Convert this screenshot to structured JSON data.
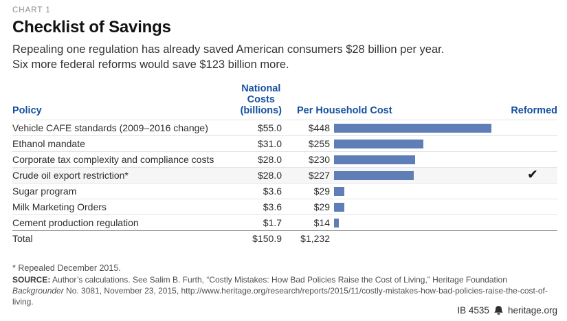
{
  "theme": {
    "accent_blue": "#14509e",
    "bar_color": "#5f7db7",
    "highlight_row": "#f6f6f6"
  },
  "header": {
    "eyebrow": "CHART 1",
    "title": "Checklist of Savings",
    "subtitle_line1": "Repealing one regulation has already saved American consumers $28 billion per year.",
    "subtitle_line2": "Six more federal reforms would save $123 billion more."
  },
  "table": {
    "headers": {
      "policy": "Policy",
      "national_lines": [
        "National",
        "Costs",
        "(billions)"
      ],
      "household": "Per Household Cost",
      "reformed": "Reformed"
    },
    "reformed_glyph": "✔",
    "rows": [
      {
        "policy": "Vehicle CAFE standards (2009–2016 change)",
        "national": "$55.0",
        "household": "$448",
        "household_value": 448,
        "reformed": false,
        "highlighted": false
      },
      {
        "policy": "Ethanol mandate",
        "national": "$31.0",
        "household": "$255",
        "household_value": 255,
        "reformed": false,
        "highlighted": false
      },
      {
        "policy": "Corporate tax complexity and compliance costs",
        "national": "$28.0",
        "household": "$230",
        "household_value": 230,
        "reformed": false,
        "highlighted": false
      },
      {
        "policy": "Crude oil export restriction*",
        "national": "$28.0",
        "household": "$227",
        "household_value": 227,
        "reformed": true,
        "highlighted": true
      },
      {
        "policy": "Sugar program",
        "national": "$3.6",
        "household": "$29",
        "household_value": 29,
        "reformed": false,
        "highlighted": false
      },
      {
        "policy": "Milk Marketing Orders",
        "national": "$3.6",
        "household": "$29",
        "household_value": 29,
        "reformed": false,
        "highlighted": false
      },
      {
        "policy": "Cement production regulation",
        "national": "$1.7",
        "household": "$14",
        "household_value": 14,
        "reformed": false,
        "highlighted": false
      }
    ],
    "total": {
      "label": "Total",
      "national": "$150.9",
      "household": "$1,232"
    }
  },
  "footnotes": {
    "asterisk": "* Repealed December 2015.",
    "source_label": "SOURCE:",
    "source_before_italic": " Author’s calculations. See Salim B. Furth, “Costly Mistakes: How Bad Policies Raise the Cost of Living,” Heritage Foundation ",
    "source_italic": "Backgrounder",
    "source_after_italic": " No. 3081, November 23, 2015, http://www.heritage.org/research/reports/2015/11/costly-mistakes-how-bad-policies-raise-the-cost-of-living."
  },
  "footer": {
    "report_id": "IB 4535",
    "site": "heritage.org"
  },
  "chart_data": {
    "type": "bar",
    "orientation": "horizontal",
    "title": "Checklist of Savings",
    "subtitle": "Repealing one regulation has already saved American consumers $28 billion per year. Six more federal reforms would save $123 billion more.",
    "categories": [
      "Vehicle CAFE standards (2009–2016 change)",
      "Ethanol mandate",
      "Corporate tax complexity and compliance costs",
      "Crude oil export restriction*",
      "Sugar program",
      "Milk Marketing Orders",
      "Cement production regulation"
    ],
    "series": [
      {
        "name": "National Costs (billions)",
        "values": [
          55.0,
          31.0,
          28.0,
          28.0,
          3.6,
          3.6,
          1.7
        ]
      },
      {
        "name": "Per Household Cost",
        "values": [
          448,
          255,
          230,
          227,
          29,
          29,
          14
        ]
      }
    ],
    "bars_plotted_series": "Per Household Cost",
    "reformed_flags": [
      false,
      false,
      false,
      true,
      false,
      false,
      false
    ],
    "totals": {
      "national_costs_billions": 150.9,
      "per_household_cost": 1232
    },
    "xlim": [
      0,
      448
    ],
    "grid": false,
    "legend": false,
    "bar_color": "#5f7db7"
  }
}
